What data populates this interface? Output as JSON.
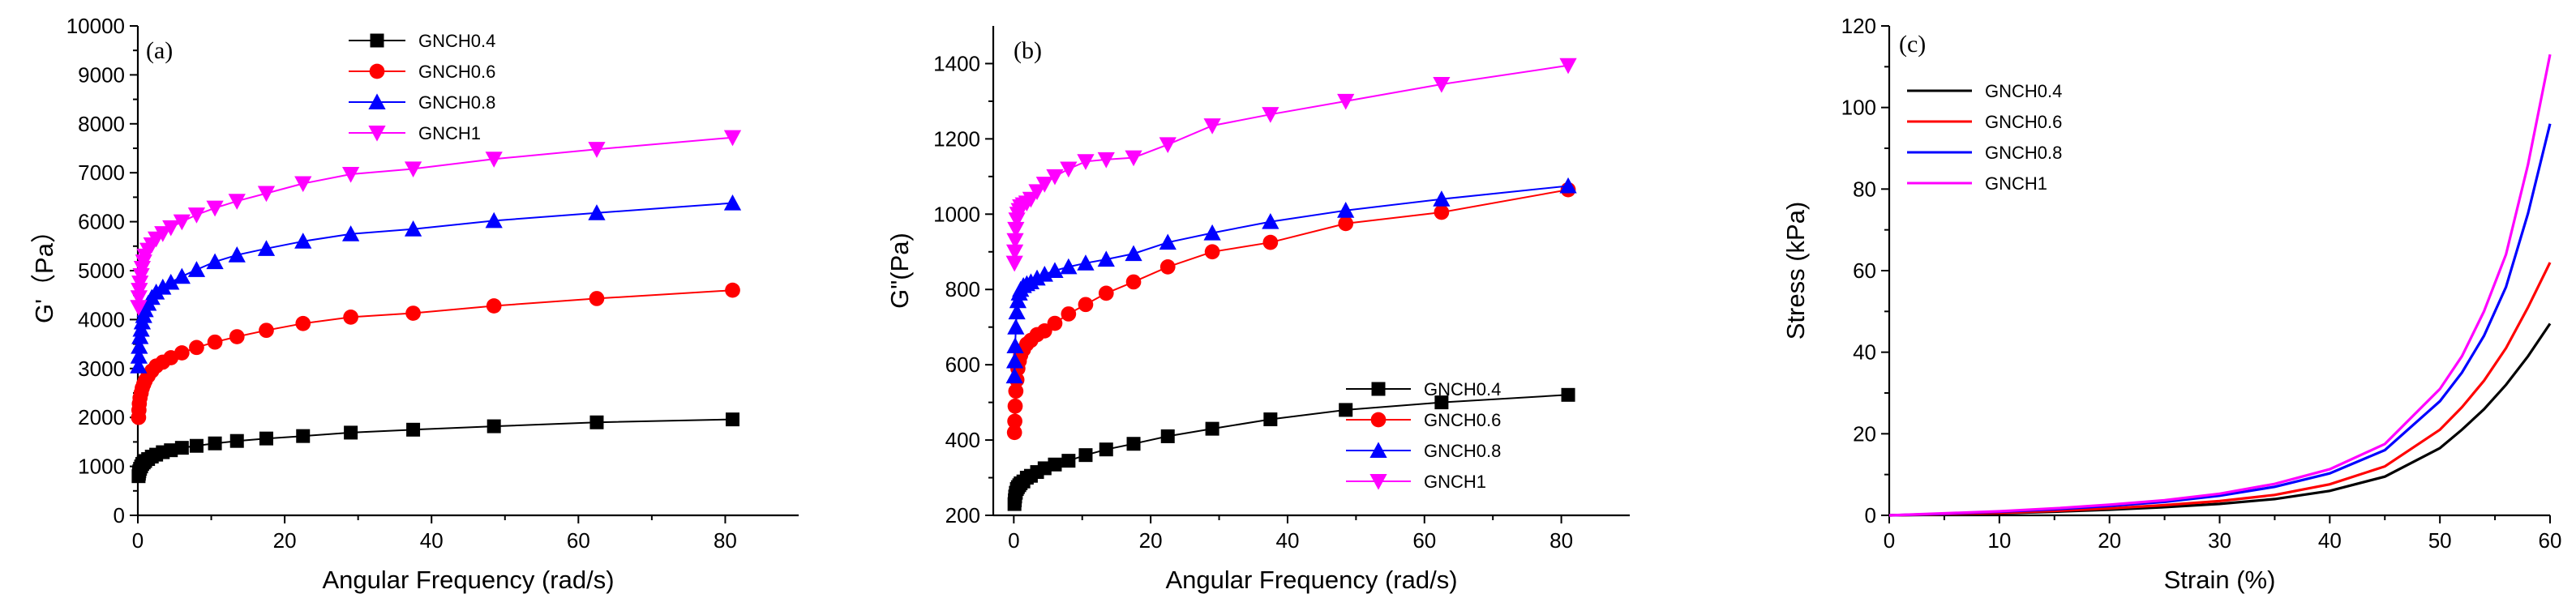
{
  "chart_data": [
    {
      "type": "line",
      "panel_label": "(a)",
      "xlabel": "Angular Frequency (rad/s)",
      "ylabel": "G'（Pa）",
      "xlim": [
        0,
        90
      ],
      "ylim": [
        0,
        10000
      ],
      "xticks": [
        "0",
        "20",
        "40",
        "60",
        "80"
      ],
      "yticks": [
        "0",
        "1000",
        "2000",
        "3000",
        "4000",
        "5000",
        "6000",
        "7000",
        "8000",
        "9000",
        "10000"
      ],
      "legend_position": "top-center",
      "series": [
        {
          "name": "GNCH0.4",
          "color": "#000000",
          "marker": "square",
          "x": [
            0.1,
            0.15,
            0.2,
            0.3,
            0.45,
            0.6,
            0.8,
            1.0,
            1.4,
            1.9,
            2.5,
            3.4,
            4.5,
            6.0,
            8.0,
            10.5,
            13.5,
            17.5,
            22.5,
            29,
            37.5,
            48.5,
            62.5,
            81
          ],
          "y": [
            800,
            850,
            900,
            950,
            1000,
            1050,
            1080,
            1110,
            1150,
            1200,
            1240,
            1290,
            1330,
            1380,
            1420,
            1470,
            1520,
            1570,
            1620,
            1690,
            1750,
            1820,
            1900,
            1960
          ]
        },
        {
          "name": "GNCH0.6",
          "color": "#ff0000",
          "marker": "circle",
          "x": [
            0.1,
            0.15,
            0.2,
            0.3,
            0.45,
            0.6,
            0.8,
            1.0,
            1.4,
            1.9,
            2.5,
            3.4,
            4.5,
            6.0,
            8.0,
            10.5,
            13.5,
            17.5,
            22.5,
            29,
            37.5,
            48.5,
            62.5,
            81
          ],
          "y": [
            2000,
            2150,
            2280,
            2400,
            2500,
            2600,
            2680,
            2750,
            2850,
            2950,
            3050,
            3130,
            3220,
            3320,
            3430,
            3540,
            3650,
            3780,
            3920,
            4050,
            4130,
            4280,
            4430,
            4600
          ]
        },
        {
          "name": "GNCH0.8",
          "color": "#0000ff",
          "marker": "triangle-up",
          "x": [
            0.1,
            0.15,
            0.2,
            0.3,
            0.45,
            0.6,
            0.8,
            1.0,
            1.4,
            1.9,
            2.5,
            3.4,
            4.5,
            6.0,
            8.0,
            10.5,
            13.5,
            17.5,
            22.5,
            29,
            37.5,
            48.5,
            62.5,
            81
          ],
          "y": [
            3050,
            3250,
            3450,
            3650,
            3800,
            3950,
            4080,
            4200,
            4330,
            4450,
            4560,
            4660,
            4760,
            4880,
            5020,
            5180,
            5320,
            5450,
            5600,
            5750,
            5850,
            6020,
            6180,
            6380
          ]
        },
        {
          "name": "GNCH1",
          "color": "#ff00ff",
          "marker": "triangle-down",
          "x": [
            0.1,
            0.15,
            0.2,
            0.3,
            0.45,
            0.6,
            0.8,
            1.0,
            1.4,
            1.9,
            2.5,
            3.4,
            4.5,
            6.0,
            8.0,
            10.5,
            13.5,
            17.5,
            22.5,
            29,
            37.5,
            48.5,
            62.5,
            81
          ],
          "y": [
            4250,
            4450,
            4600,
            4750,
            4900,
            5050,
            5180,
            5300,
            5420,
            5530,
            5650,
            5760,
            5880,
            6000,
            6140,
            6280,
            6420,
            6580,
            6780,
            6970,
            7080,
            7280,
            7480,
            7720
          ]
        }
      ]
    },
    {
      "type": "line",
      "panel_label": "(b)",
      "xlabel": "Angular Frequency (rad/s)",
      "ylabel": "G\"(Pa)",
      "xlim": [
        -3,
        90
      ],
      "ylim": [
        200,
        1500
      ],
      "xticks": [
        "0",
        "20",
        "40",
        "60",
        "80"
      ],
      "yticks": [
        "200",
        "400",
        "600",
        "800",
        "1000",
        "1200",
        "1400"
      ],
      "legend_position": "bottom-right",
      "series": [
        {
          "name": "GNCH0.4",
          "color": "#000000",
          "marker": "square",
          "x": [
            0.1,
            0.15,
            0.2,
            0.3,
            0.45,
            0.6,
            0.8,
            1.0,
            1.4,
            1.9,
            2.5,
            3.4,
            4.5,
            6.0,
            8.0,
            10.5,
            13.5,
            17.5,
            22.5,
            29,
            37.5,
            48.5,
            62.5,
            81
          ],
          "y": [
            230,
            240,
            250,
            260,
            270,
            275,
            280,
            285,
            290,
            300,
            305,
            315,
            325,
            335,
            345,
            360,
            375,
            390,
            410,
            430,
            455,
            480,
            500,
            520
          ]
        },
        {
          "name": "GNCH0.6",
          "color": "#ff0000",
          "marker": "circle",
          "x": [
            0.1,
            0.15,
            0.2,
            0.3,
            0.45,
            0.6,
            0.8,
            1.0,
            1.4,
            1.9,
            2.5,
            3.4,
            4.5,
            6.0,
            8.0,
            10.5,
            13.5,
            17.5,
            22.5,
            29,
            37.5,
            48.5,
            62.5,
            81
          ],
          "y": [
            420,
            450,
            490,
            530,
            560,
            590,
            610,
            625,
            640,
            655,
            665,
            680,
            690,
            710,
            735,
            760,
            790,
            820,
            860,
            900,
            925,
            975,
            1005,
            1065
          ]
        },
        {
          "name": "GNCH0.8",
          "color": "#0000ff",
          "marker": "triangle-up",
          "x": [
            0.1,
            0.15,
            0.2,
            0.3,
            0.45,
            0.6,
            0.8,
            1.0,
            1.4,
            1.9,
            2.5,
            3.4,
            4.5,
            6.0,
            8.0,
            10.5,
            13.5,
            17.5,
            22.5,
            29,
            37.5,
            48.5,
            62.5,
            81
          ],
          "y": [
            570,
            610,
            650,
            700,
            740,
            770,
            790,
            800,
            810,
            815,
            820,
            830,
            840,
            850,
            860,
            870,
            880,
            895,
            925,
            950,
            980,
            1010,
            1040,
            1075
          ]
        },
        {
          "name": "GNCH1",
          "color": "#ff00ff",
          "marker": "triangle-down",
          "x": [
            0.1,
            0.15,
            0.2,
            0.3,
            0.45,
            0.6,
            0.8,
            1.0,
            1.4,
            1.9,
            2.5,
            3.4,
            4.5,
            6.0,
            8.0,
            10.5,
            13.5,
            17.5,
            22.5,
            29,
            37.5,
            48.5,
            62.5,
            81
          ],
          "y": [
            870,
            900,
            930,
            960,
            985,
            1000,
            1010,
            1020,
            1025,
            1030,
            1040,
            1060,
            1080,
            1100,
            1120,
            1140,
            1145,
            1150,
            1185,
            1235,
            1265,
            1300,
            1345,
            1395
          ]
        }
      ]
    },
    {
      "type": "line",
      "panel_label": "(c)",
      "xlabel": "Strain (%)",
      "ylabel": "Stress (kPa)",
      "xlim": [
        0,
        60
      ],
      "ylim": [
        0,
        120
      ],
      "xticks": [
        "0",
        "10",
        "20",
        "30",
        "40",
        "50",
        "60"
      ],
      "yticks": [
        "0",
        "20",
        "40",
        "60",
        "80",
        "100",
        "120"
      ],
      "legend_position": "top-left",
      "series": [
        {
          "name": "GNCH0.4",
          "color": "#000000",
          "marker": "none",
          "x": [
            0,
            5,
            10,
            15,
            20,
            25,
            30,
            35,
            40,
            45,
            50,
            52,
            54,
            56,
            58,
            60
          ],
          "y": [
            0,
            0.2,
            0.5,
            0.9,
            1.4,
            2.0,
            2.8,
            4.0,
            6.0,
            9.5,
            16.5,
            21,
            26,
            32,
            39,
            47
          ]
        },
        {
          "name": "GNCH0.6",
          "color": "#ff0000",
          "marker": "none",
          "x": [
            0,
            5,
            10,
            15,
            20,
            25,
            30,
            35,
            40,
            45,
            50,
            52,
            54,
            56,
            58,
            60
          ],
          "y": [
            0,
            0.3,
            0.6,
            1.1,
            1.7,
            2.5,
            3.5,
            5.0,
            7.6,
            12.0,
            21,
            26.5,
            33,
            41,
            51,
            62
          ]
        },
        {
          "name": "GNCH0.8",
          "color": "#0000ff",
          "marker": "none",
          "x": [
            0,
            5,
            10,
            15,
            20,
            25,
            30,
            35,
            40,
            45,
            50,
            52,
            54,
            56,
            58,
            60
          ],
          "y": [
            0,
            0.4,
            0.9,
            1.5,
            2.3,
            3.3,
            4.8,
            7.0,
            10.3,
            16.0,
            28,
            35,
            44,
            56,
            74,
            96
          ]
        },
        {
          "name": "GNCH1",
          "color": "#ff00ff",
          "marker": "none",
          "x": [
            0,
            5,
            10,
            15,
            20,
            25,
            30,
            35,
            40,
            45,
            50,
            52,
            54,
            56,
            58,
            60
          ],
          "y": [
            0,
            0.5,
            1.0,
            1.7,
            2.6,
            3.7,
            5.3,
            7.7,
            11.3,
            17.5,
            31,
            39,
            50,
            64,
            86,
            113
          ]
        }
      ]
    }
  ]
}
